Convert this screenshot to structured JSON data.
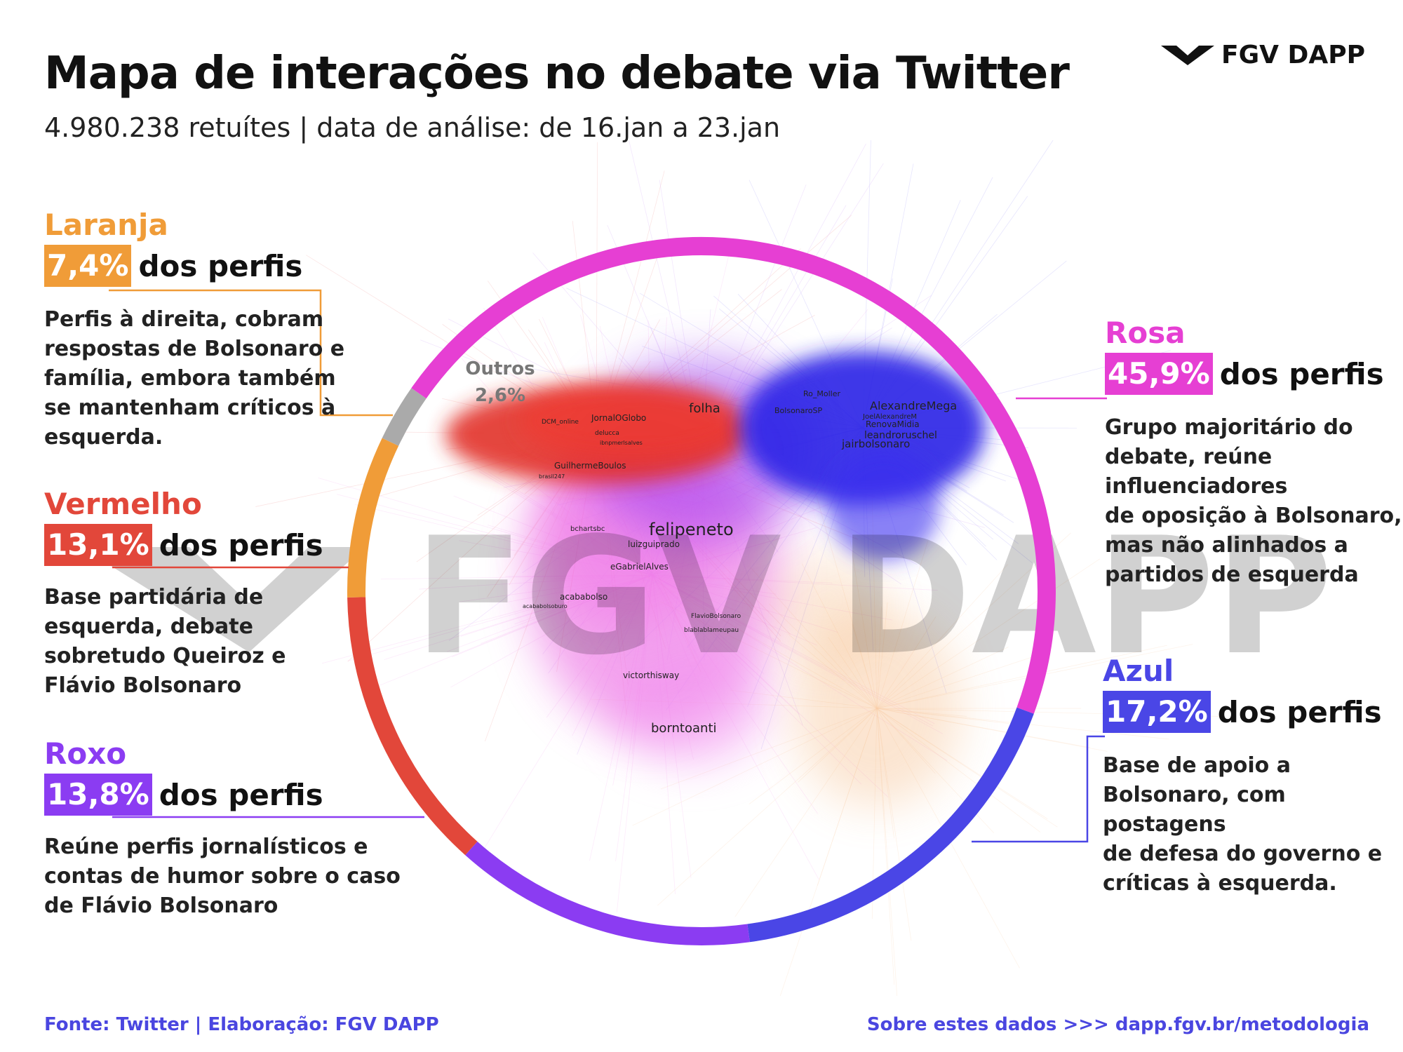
{
  "header": {
    "title": "Mapa de interações no debate via Twitter",
    "subtitle": "4.980.238 retuítes | data de análise: de 16.jan a 23.jan",
    "logo": "FGV DAPP"
  },
  "watermark": "FGV DAPP",
  "colors": {
    "laranja": "#f09c38",
    "vermelho": "#e2473a",
    "roxo": "#8b3cf2",
    "rosa": "#e63fd3",
    "azul": "#4a46e6",
    "outros": "#aaaaaa"
  },
  "groups": {
    "laranja": {
      "name": "Laranja",
      "pct": "7,4%",
      "suffix": "dos perfis",
      "desc": [
        "Perfis à direita, cobram",
        "respostas de Bolsonaro e",
        "família, embora também",
        "se mantenham críticos à",
        "esquerda."
      ]
    },
    "vermelho": {
      "name": "Vermelho",
      "pct": "13,1%",
      "suffix": "dos perfis",
      "desc": [
        "Base partidária de",
        "esquerda, debate",
        "sobretudo Queiroz e",
        "Flávio Bolsonaro"
      ]
    },
    "roxo": {
      "name": "Roxo",
      "pct": "13,8%",
      "suffix": "dos perfis",
      "desc": [
        "Reúne perfis jornalísticos e",
        "contas de humor sobre o caso",
        "de Flávio Bolsonaro"
      ]
    },
    "rosa": {
      "name": "Rosa",
      "pct": "45,9%",
      "suffix": "dos perfis",
      "desc": [
        "Grupo majoritário do",
        "debate, reúne",
        "influenciadores",
        "de oposição à Bolsonaro,",
        "mas não alinhados a",
        "partidos de esquerda"
      ]
    },
    "azul": {
      "name": "Azul",
      "pct": "17,2%",
      "suffix": "dos perfis",
      "desc": [
        "Base de apoio a",
        "Bolsonaro, com postagens",
        "de defesa do governo e",
        "críticas à esquerda."
      ]
    },
    "outros": {
      "name": "Outros",
      "pct": "2,6%"
    }
  },
  "ring_segments": [
    {
      "group": "rosa",
      "share": 45.9
    },
    {
      "group": "azul",
      "share": 17.2
    },
    {
      "group": "roxo",
      "share": 13.8
    },
    {
      "group": "vermelho",
      "share": 13.1
    },
    {
      "group": "laranja",
      "share": 7.4
    },
    {
      "group": "outros",
      "share": 2.6
    }
  ],
  "network_labels": {
    "big": [
      "felipeneto",
      "borntoanti",
      "folha",
      "AlexandreMega",
      "jairbolsonaro",
      "leandroruschel"
    ],
    "medium": [
      "JornalOGlobo",
      "GuilhermeBoulos",
      "luizguiprado",
      "eGabrielAlves",
      "acababolso",
      "victorthisway",
      "Ro_Moller",
      "BolsonaroSP",
      "RenovaMidia",
      "bcharts​bc"
    ],
    "small": [
      "DCM_online",
      "delucca",
      "brasil247",
      "FlavioBolsonaro",
      "blablablameupau",
      "acababolsoburo",
      "ibnpmerlsalves",
      "JoelAlexandreM"
    ]
  },
  "footer": {
    "source": "Fonte: Twitter | Elaboração: FGV DAPP",
    "method": "Sobre estes dados >>> dapp.fgv.br/metodologia"
  }
}
